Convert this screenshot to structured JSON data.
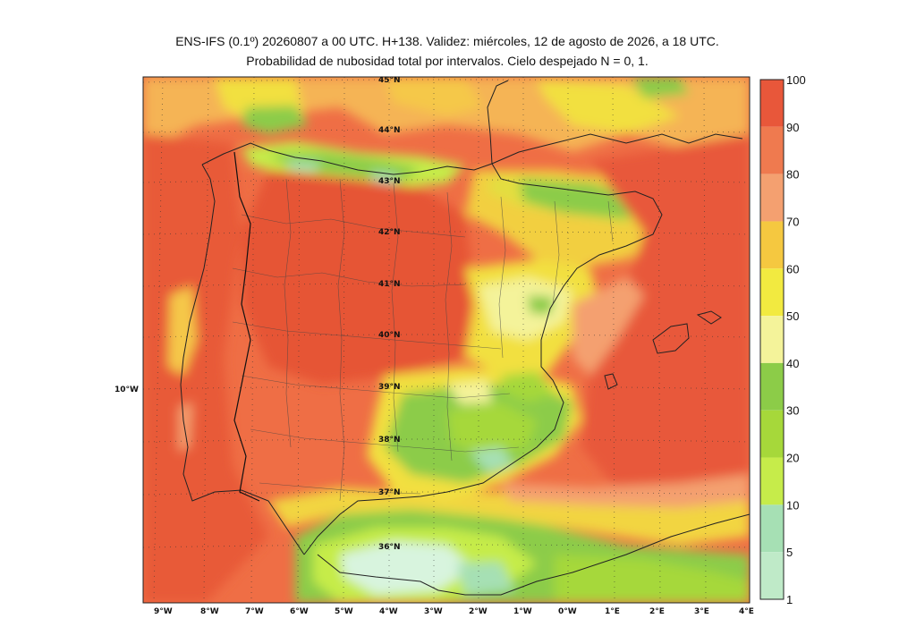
{
  "title_line1": "ENS-IFS (0.1º) 20260807 a 00 UTC. H+138. Validez: miércoles, 12 de agosto de 2026, a 18 UTC.",
  "title_line2": "Probabilidad de nubosidad total por intervalos. Cielo despejado N = 0, 1.",
  "lat_labels": [
    "45°N",
    "44°N",
    "43°N",
    "42°N",
    "41°N",
    "40°N",
    "39°N",
    "38°N",
    "37°N",
    "36°N"
  ],
  "left_label": "10°W",
  "lon_labels": [
    "9°W",
    "8°W",
    "7°W",
    "6°W",
    "5°W",
    "4°W",
    "3°W",
    "2°W",
    "1°W",
    "0°W",
    "1°E",
    "2°E",
    "3°E",
    "4°E"
  ],
  "colorbar": {
    "labels": [
      "100",
      "90",
      "80",
      "70",
      "60",
      "50",
      "40",
      "30",
      "20",
      "10",
      "5",
      "1"
    ],
    "colors": [
      "#e8573a",
      "#ef7a4f",
      "#f4a070",
      "#f5c840",
      "#f2ea40",
      "#f4f39a",
      "#8ccc48",
      "#a6d83a",
      "#c6ec4a",
      "#a6e0b4",
      "#bfeac8",
      "#d8f4de"
    ]
  },
  "palette": {
    "high": "#e8573a",
    "orange": "#f08050",
    "salmon": "#f4a070",
    "yellow": "#f2e040",
    "paleyellow": "#f4f39a",
    "green": "#8ccc48",
    "lightgreen": "#c6ec4a",
    "mint": "#bfeac8"
  }
}
